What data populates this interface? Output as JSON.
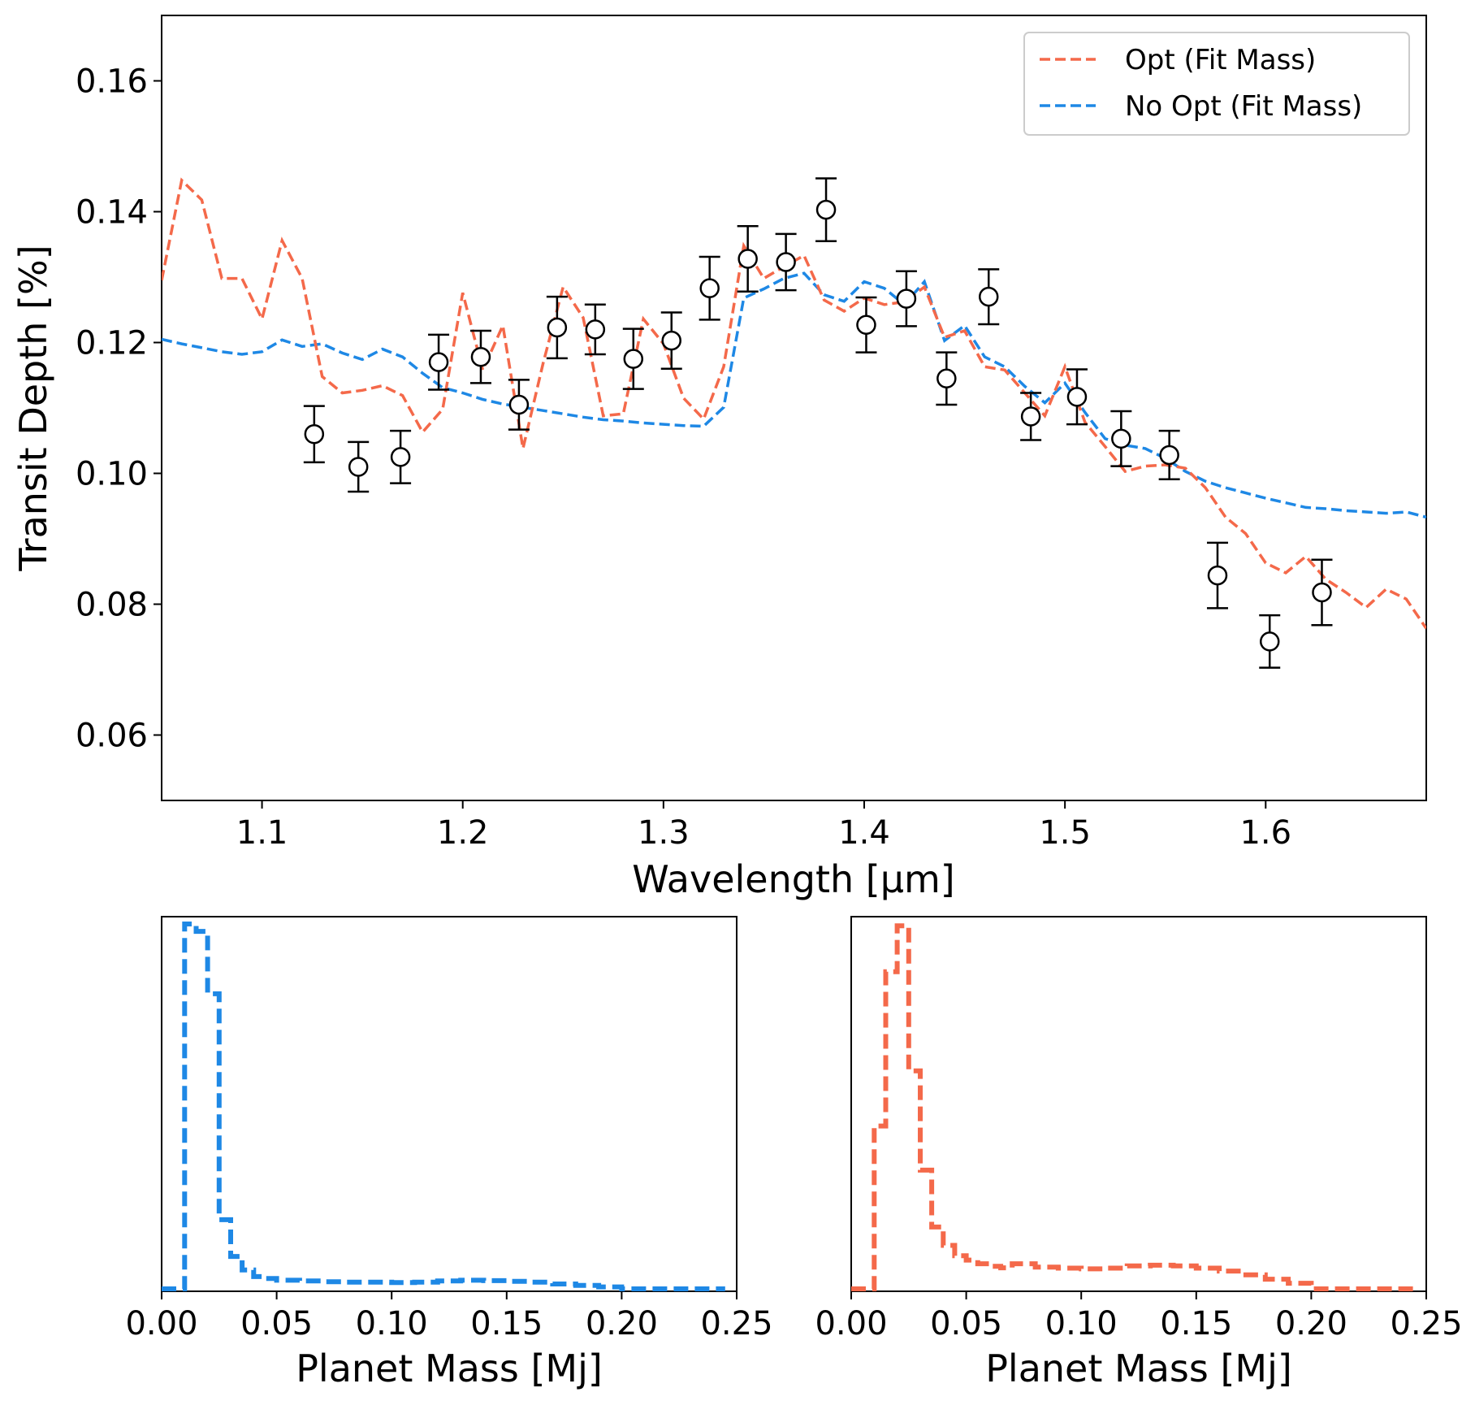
{
  "chart_data": [
    {
      "type": "line",
      "xlabel": "Wavelength [μm]",
      "ylabel": "Transit Depth [%]",
      "xlim": [
        1.05,
        1.68
      ],
      "ylim": [
        0.05,
        0.17
      ],
      "xticks": [
        "1.1",
        "1.2",
        "1.3",
        "1.4",
        "1.5",
        "1.6"
      ],
      "yticks": [
        "0.06",
        "0.08",
        "0.10",
        "0.12",
        "0.14",
        "0.16"
      ],
      "legend_position": "top-right",
      "series": [
        {
          "name": "Opt (Fit Mass)",
          "color": "#f4694a",
          "style": "dashed",
          "x": [
            1.05,
            1.06,
            1.07,
            1.08,
            1.09,
            1.1,
            1.11,
            1.12,
            1.13,
            1.14,
            1.15,
            1.16,
            1.17,
            1.18,
            1.19,
            1.2,
            1.21,
            1.22,
            1.23,
            1.24,
            1.25,
            1.26,
            1.27,
            1.28,
            1.29,
            1.3,
            1.31,
            1.32,
            1.33,
            1.34,
            1.35,
            1.36,
            1.37,
            1.38,
            1.39,
            1.4,
            1.41,
            1.42,
            1.43,
            1.44,
            1.45,
            1.46,
            1.47,
            1.48,
            1.49,
            1.5,
            1.51,
            1.52,
            1.53,
            1.54,
            1.55,
            1.56,
            1.57,
            1.58,
            1.59,
            1.6,
            1.61,
            1.62,
            1.63,
            1.64,
            1.65,
            1.66,
            1.67,
            1.68
          ],
          "y": [
            0.1295,
            0.1448,
            0.1418,
            0.1298,
            0.1298,
            0.1236,
            0.1356,
            0.1298,
            0.1148,
            0.1123,
            0.1127,
            0.1134,
            0.1119,
            0.1063,
            0.1098,
            0.1276,
            0.1158,
            0.1226,
            0.1038,
            0.1168,
            0.1285,
            0.1238,
            0.1088,
            0.1091,
            0.1236,
            0.1198,
            0.1115,
            0.1083,
            0.1163,
            0.1348,
            0.1298,
            0.1316,
            0.1333,
            0.1265,
            0.1248,
            0.1268,
            0.1258,
            0.1262,
            0.1285,
            0.1208,
            0.1218,
            0.1163,
            0.1158,
            0.1123,
            0.1088,
            0.1163,
            0.1078,
            0.1041,
            0.1003,
            0.1011,
            0.1013,
            0.1008,
            0.0978,
            0.0933,
            0.0908,
            0.0863,
            0.0848,
            0.0873,
            0.0838,
            0.0818,
            0.0795,
            0.0823,
            0.0808,
            0.0763
          ]
        },
        {
          "name": "No Opt (Fit Mass)",
          "color": "#1e88e5",
          "style": "dashed",
          "x": [
            1.05,
            1.06,
            1.07,
            1.08,
            1.09,
            1.1,
            1.11,
            1.12,
            1.13,
            1.14,
            1.15,
            1.16,
            1.17,
            1.18,
            1.19,
            1.2,
            1.21,
            1.22,
            1.23,
            1.24,
            1.25,
            1.26,
            1.27,
            1.28,
            1.29,
            1.3,
            1.31,
            1.32,
            1.33,
            1.34,
            1.35,
            1.36,
            1.37,
            1.38,
            1.39,
            1.4,
            1.41,
            1.42,
            1.43,
            1.44,
            1.45,
            1.46,
            1.47,
            1.48,
            1.49,
            1.5,
            1.51,
            1.52,
            1.53,
            1.54,
            1.55,
            1.56,
            1.57,
            1.58,
            1.59,
            1.6,
            1.61,
            1.62,
            1.63,
            1.64,
            1.65,
            1.66,
            1.67,
            1.68
          ],
          "y": [
            0.1205,
            0.1198,
            0.1192,
            0.1186,
            0.1182,
            0.1186,
            0.1204,
            0.1194,
            0.1198,
            0.1184,
            0.1174,
            0.119,
            0.1178,
            0.1153,
            0.1131,
            0.1123,
            0.1113,
            0.1106,
            0.1101,
            0.1096,
            0.1091,
            0.1086,
            0.1082,
            0.108,
            0.1077,
            0.1075,
            0.1073,
            0.1072,
            0.1101,
            0.1268,
            0.1282,
            0.1298,
            0.1306,
            0.1273,
            0.1263,
            0.1293,
            0.1283,
            0.1258,
            0.1293,
            0.1203,
            0.1226,
            0.1178,
            0.1163,
            0.1133,
            0.1108,
            0.1138,
            0.1093,
            0.1053,
            0.1043,
            0.1038,
            0.1023,
            0.1003,
            0.0988,
            0.0978,
            0.097,
            0.0962,
            0.0955,
            0.0948,
            0.0946,
            0.0943,
            0.0941,
            0.0939,
            0.0941,
            0.0933
          ]
        },
        {
          "name": "",
          "type": "errorbar",
          "color": "#000000",
          "x": [
            1.126,
            1.148,
            1.169,
            1.188,
            1.209,
            1.228,
            1.247,
            1.266,
            1.285,
            1.304,
            1.323,
            1.342,
            1.361,
            1.381,
            1.401,
            1.421,
            1.441,
            1.462,
            1.483,
            1.506,
            1.528,
            1.552,
            1.576,
            1.602,
            1.628
          ],
          "y": [
            0.106,
            0.101,
            0.1025,
            0.117,
            0.1178,
            0.1105,
            0.1223,
            0.122,
            0.1175,
            0.1203,
            0.1283,
            0.1328,
            0.1323,
            0.1403,
            0.1227,
            0.1267,
            0.1145,
            0.127,
            0.1087,
            0.1117,
            0.1053,
            0.1028,
            0.0844,
            0.0743,
            0.0818
          ],
          "yerr": [
            0.0043,
            0.0038,
            0.004,
            0.0042,
            0.004,
            0.0038,
            0.0047,
            0.0038,
            0.0046,
            0.0043,
            0.0048,
            0.005,
            0.0043,
            0.0048,
            0.0042,
            0.0042,
            0.004,
            0.0042,
            0.0036,
            0.0042,
            0.0042,
            0.0037,
            0.005,
            0.004,
            0.005
          ]
        }
      ]
    },
    {
      "type": "bar",
      "histtype": "step",
      "color": "#1e88e5",
      "style": "dashed",
      "xlabel": "Planet Mass [Mj]",
      "ylabel": "",
      "xlim": [
        0.0,
        0.25
      ],
      "xticks": [
        "0.00",
        "0.05",
        "0.10",
        "0.15",
        "0.20",
        "0.25"
      ],
      "ylim": [
        0,
        1.02
      ],
      "bin_edges": [
        0.0,
        0.01,
        0.015,
        0.02,
        0.025,
        0.03,
        0.035,
        0.04,
        0.045,
        0.05,
        0.06,
        0.07,
        0.08,
        0.09,
        0.1,
        0.11,
        0.12,
        0.13,
        0.14,
        0.15,
        0.16,
        0.17,
        0.18,
        0.19,
        0.2,
        0.21,
        0.22,
        0.23,
        0.24,
        0.245
      ],
      "values": [
        0.0,
        1.0,
        0.98,
        0.81,
        0.195,
        0.095,
        0.058,
        0.04,
        0.035,
        0.03,
        0.028,
        0.026,
        0.025,
        0.025,
        0.024,
        0.025,
        0.028,
        0.03,
        0.029,
        0.027,
        0.025,
        0.02,
        0.016,
        0.012,
        0.006,
        0.002,
        0.001,
        0.001,
        0.0
      ]
    },
    {
      "type": "bar",
      "histtype": "step",
      "color": "#f4694a",
      "style": "dashed",
      "xlabel": "Planet Mass [Mj]",
      "ylabel": "",
      "xlim": [
        0.0,
        0.25
      ],
      "xticks": [
        "0.00",
        "0.05",
        "0.10",
        "0.15",
        "0.20",
        "0.25"
      ],
      "ylim": [
        0,
        1.02
      ],
      "bin_edges": [
        0.0,
        0.01,
        0.015,
        0.02,
        0.025,
        0.03,
        0.035,
        0.04,
        0.045,
        0.05,
        0.055,
        0.06,
        0.065,
        0.07,
        0.08,
        0.09,
        0.1,
        0.11,
        0.12,
        0.13,
        0.14,
        0.15,
        0.16,
        0.17,
        0.18,
        0.19,
        0.2,
        0.21,
        0.22,
        0.23,
        0.245
      ],
      "values": [
        0.0,
        0.45,
        0.87,
        0.995,
        0.6,
        0.33,
        0.175,
        0.125,
        0.097,
        0.085,
        0.075,
        0.068,
        0.064,
        0.075,
        0.066,
        0.063,
        0.061,
        0.063,
        0.069,
        0.071,
        0.069,
        0.063,
        0.055,
        0.045,
        0.033,
        0.022,
        0.005,
        0.002,
        0.001,
        0.0
      ]
    }
  ]
}
